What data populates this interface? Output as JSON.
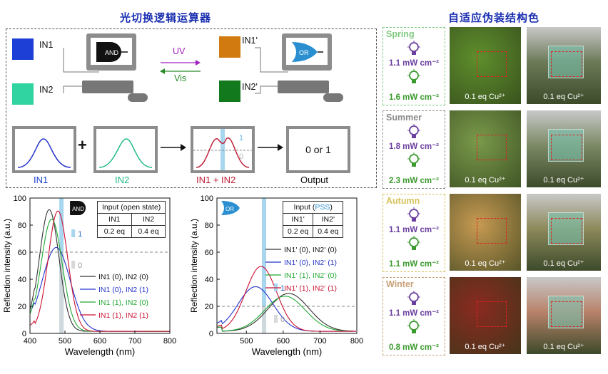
{
  "left_title": "光切换逻辑运算器",
  "right_title": "自适应伪装结构色",
  "logic": {
    "in1": "IN1",
    "in2": "IN2",
    "in1p": "IN1'",
    "in2p": "IN2'",
    "and_gate": "AND",
    "or_gate": "OR",
    "uv": "UV",
    "vis": "Vis",
    "plus": "+",
    "spec_labels": [
      "IN1",
      "IN2",
      "IN1 + IN2",
      "Output"
    ],
    "output_text": "0 or 1",
    "one": "1",
    "zero": "0",
    "colors": {
      "in1": "#1d3fd6",
      "in2": "#2fd4a0",
      "in1p": "#d07a10",
      "in2p": "#127a1c",
      "sum": "#c0203a"
    }
  },
  "and_table": {
    "header": "Input (open state)",
    "cols": [
      "IN1",
      "IN2"
    ],
    "vals": [
      "0.2 eq",
      "0.4 eq"
    ]
  },
  "or_table": {
    "header_pre": "Input (",
    "header_mid": "PSS",
    "header_post": ")",
    "cols": [
      "IN1'",
      "IN2'"
    ],
    "vals": [
      "0.2 eq",
      "0.4 eq"
    ]
  },
  "chart_data": [
    {
      "type": "line",
      "title": "",
      "xlabel": "Wavelength (nm)",
      "ylabel": "Reflection intensity (a.u.)",
      "xlim": [
        400,
        800
      ],
      "ylim": [
        0,
        100
      ],
      "xticks": [
        400,
        500,
        600,
        700,
        800
      ],
      "yticks": [
        0,
        20,
        40,
        60,
        80,
        100
      ],
      "threshold": 60,
      "highlight_x": 490,
      "gate": "AND",
      "series": [
        {
          "name": "IN1 (0), IN2 (0)",
          "color": "#333333",
          "peak": 455,
          "height": 90,
          "width": 28
        },
        {
          "name": "IN1 (0), IN2 (1)",
          "color": "#2233cc",
          "peak": 475,
          "height": 62,
          "width": 40
        },
        {
          "name": "IN1 (1), IN2 (0)",
          "color": "#22aa33",
          "peak": 462,
          "height": 83,
          "width": 30
        },
        {
          "name": "IN1 (1), IN2 (1)",
          "color": "#cc1133",
          "peak": 480,
          "height": 89,
          "width": 28
        }
      ]
    },
    {
      "type": "line",
      "title": "",
      "xlabel": "Wavelength (nm)",
      "ylabel": "Reflection intensity (a.u.)",
      "xlim": [
        420,
        800
      ],
      "ylim": [
        0,
        100
      ],
      "xticks": [
        500,
        600,
        700,
        800
      ],
      "yticks": [
        0,
        20,
        40,
        60,
        80,
        100
      ],
      "threshold": 20,
      "highlight_x": 548,
      "gate": "OR",
      "series": [
        {
          "name": "IN1' (0), IN2' (0)",
          "color": "#333333",
          "peak": 615,
          "height": 28,
          "width": 55
        },
        {
          "name": "IN1' (0), IN2' (1)",
          "color": "#2233cc",
          "peak": 525,
          "height": 33,
          "width": 48
        },
        {
          "name": "IN1' (1), IN2' (0)",
          "color": "#22aa33",
          "peak": 605,
          "height": 26,
          "width": 55
        },
        {
          "name": "IN1' (1), IN2' (1)",
          "color": "#cc1133",
          "peak": 540,
          "height": 48,
          "width": 42
        }
      ]
    }
  ],
  "seasons": [
    {
      "name": "Spring",
      "color": "#7fc97f",
      "p1": "1.1 mW cm⁻²",
      "p2": "1.6 mW cm⁻²",
      "c1": "#6b3fa0",
      "c2": "#3b9a2e",
      "photo1": "#5f8f2c",
      "photo2": "#6d7a58"
    },
    {
      "name": "Summer",
      "color": "#8a8a8a",
      "p1": "1.8 mW cm⁻²",
      "p2": "2.3 mW cm⁻²",
      "c1": "#6b3fa0",
      "c2": "#3b9a2e",
      "photo1": "#7a9a4a",
      "photo2": "#7c8a66"
    },
    {
      "name": "Autumn",
      "color": "#d6c25a",
      "p1": "1.1 mW cm⁻²",
      "p2": "1.1 mW cm⁻²",
      "c1": "#6b3fa0",
      "c2": "#3b9a2e",
      "photo1": "#c79a52",
      "photo2": "#8d8a5c"
    },
    {
      "name": "Winter",
      "color": "#c9a077",
      "p1": "1.1 mW cm⁻²",
      "p2": "0.8 mW cm⁻²",
      "c1": "#6b3fa0",
      "c2": "#3b9a2e",
      "photo1": "#8a2a20",
      "photo2": "#b8826a"
    }
  ],
  "photo_caption": "0.1 eq  Cu²⁺"
}
